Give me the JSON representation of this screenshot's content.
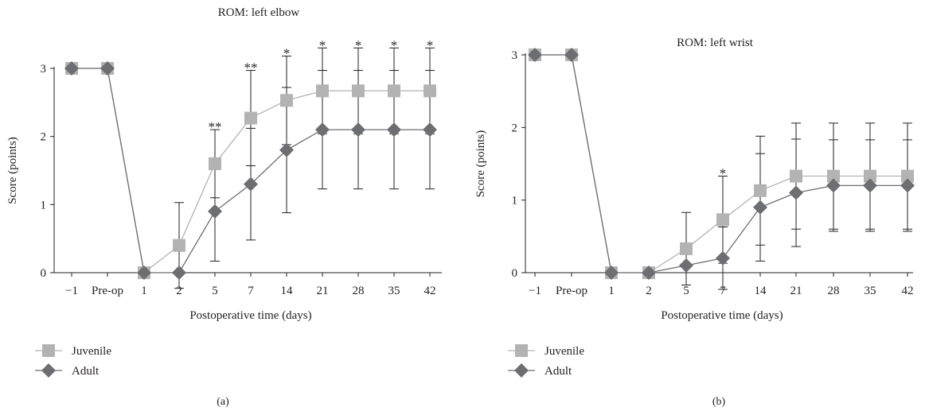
{
  "chart_data": [
    {
      "type": "line",
      "panel_label": "(a)",
      "title": "ROM: left elbow",
      "xlabel": "Postoperative time (days)",
      "ylabel": "Score (points)",
      "categories": [
        "−1",
        "Pre-op",
        "1",
        "2",
        "5",
        "7",
        "14",
        "21",
        "28",
        "35",
        "42"
      ],
      "ylim": [
        0,
        3
      ],
      "yticks": [
        0,
        1,
        2,
        3
      ],
      "legend_position": "bottom-left",
      "series": [
        {
          "name": "Juvenile",
          "color": "#b3b3b3",
          "marker": "square",
          "values": [
            3,
            3,
            0,
            0.4,
            1.6,
            2.27,
            2.53,
            2.67,
            2.67,
            2.67,
            2.67
          ],
          "error": [
            null,
            null,
            null,
            0.63,
            0.5,
            0.7,
            0.65,
            0.63,
            0.63,
            0.63,
            0.63
          ]
        },
        {
          "name": "Adult",
          "color": "#6d6e71",
          "marker": "diamond",
          "values": [
            3,
            3,
            0,
            0,
            0.9,
            1.3,
            1.8,
            2.1,
            2.1,
            2.1,
            2.1
          ],
          "error": [
            null,
            null,
            null,
            null,
            0.73,
            0.82,
            0.92,
            0.87,
            0.87,
            0.87,
            0.87
          ]
        }
      ],
      "annotations": [
        {
          "category": "5",
          "y": 2.1,
          "text": "**"
        },
        {
          "category": "7",
          "y": 2.97,
          "text": "**"
        },
        {
          "category": "14",
          "y": 3.18,
          "text": "*"
        },
        {
          "category": "21",
          "y": 3.3,
          "text": "*"
        },
        {
          "category": "28",
          "y": 3.3,
          "text": "*"
        },
        {
          "category": "35",
          "y": 3.3,
          "text": "*"
        },
        {
          "category": "42",
          "y": 3.3,
          "text": "*"
        }
      ]
    },
    {
      "type": "line",
      "panel_label": "(b)",
      "title": "ROM: left wrist",
      "xlabel": "Postoperative time (days)",
      "ylabel": "Score (points)",
      "categories": [
        "−1",
        "Pre-op",
        "1",
        "2",
        "5",
        "7",
        "14",
        "21",
        "28",
        "35",
        "42"
      ],
      "ylim": [
        0,
        3
      ],
      "yticks": [
        0,
        1,
        2,
        3
      ],
      "legend_position": "bottom-left",
      "series": [
        {
          "name": "Juvenile",
          "color": "#b3b3b3",
          "marker": "square",
          "values": [
            3,
            3,
            0,
            0,
            0.33,
            0.73,
            1.13,
            1.33,
            1.33,
            1.33,
            1.33
          ],
          "error": [
            null,
            null,
            null,
            null,
            0.5,
            0.6,
            0.75,
            0.73,
            0.73,
            0.73,
            0.73
          ]
        },
        {
          "name": "Adult",
          "color": "#6d6e71",
          "marker": "diamond",
          "values": [
            3,
            3,
            0,
            0,
            0.1,
            0.2,
            0.9,
            1.1,
            1.2,
            1.2,
            1.2
          ],
          "error": [
            null,
            null,
            null,
            null,
            null,
            0.43,
            0.74,
            0.74,
            0.63,
            0.63,
            0.63
          ]
        }
      ],
      "annotations": [
        {
          "category": "7",
          "y": 1.33,
          "text": "*"
        }
      ]
    }
  ]
}
